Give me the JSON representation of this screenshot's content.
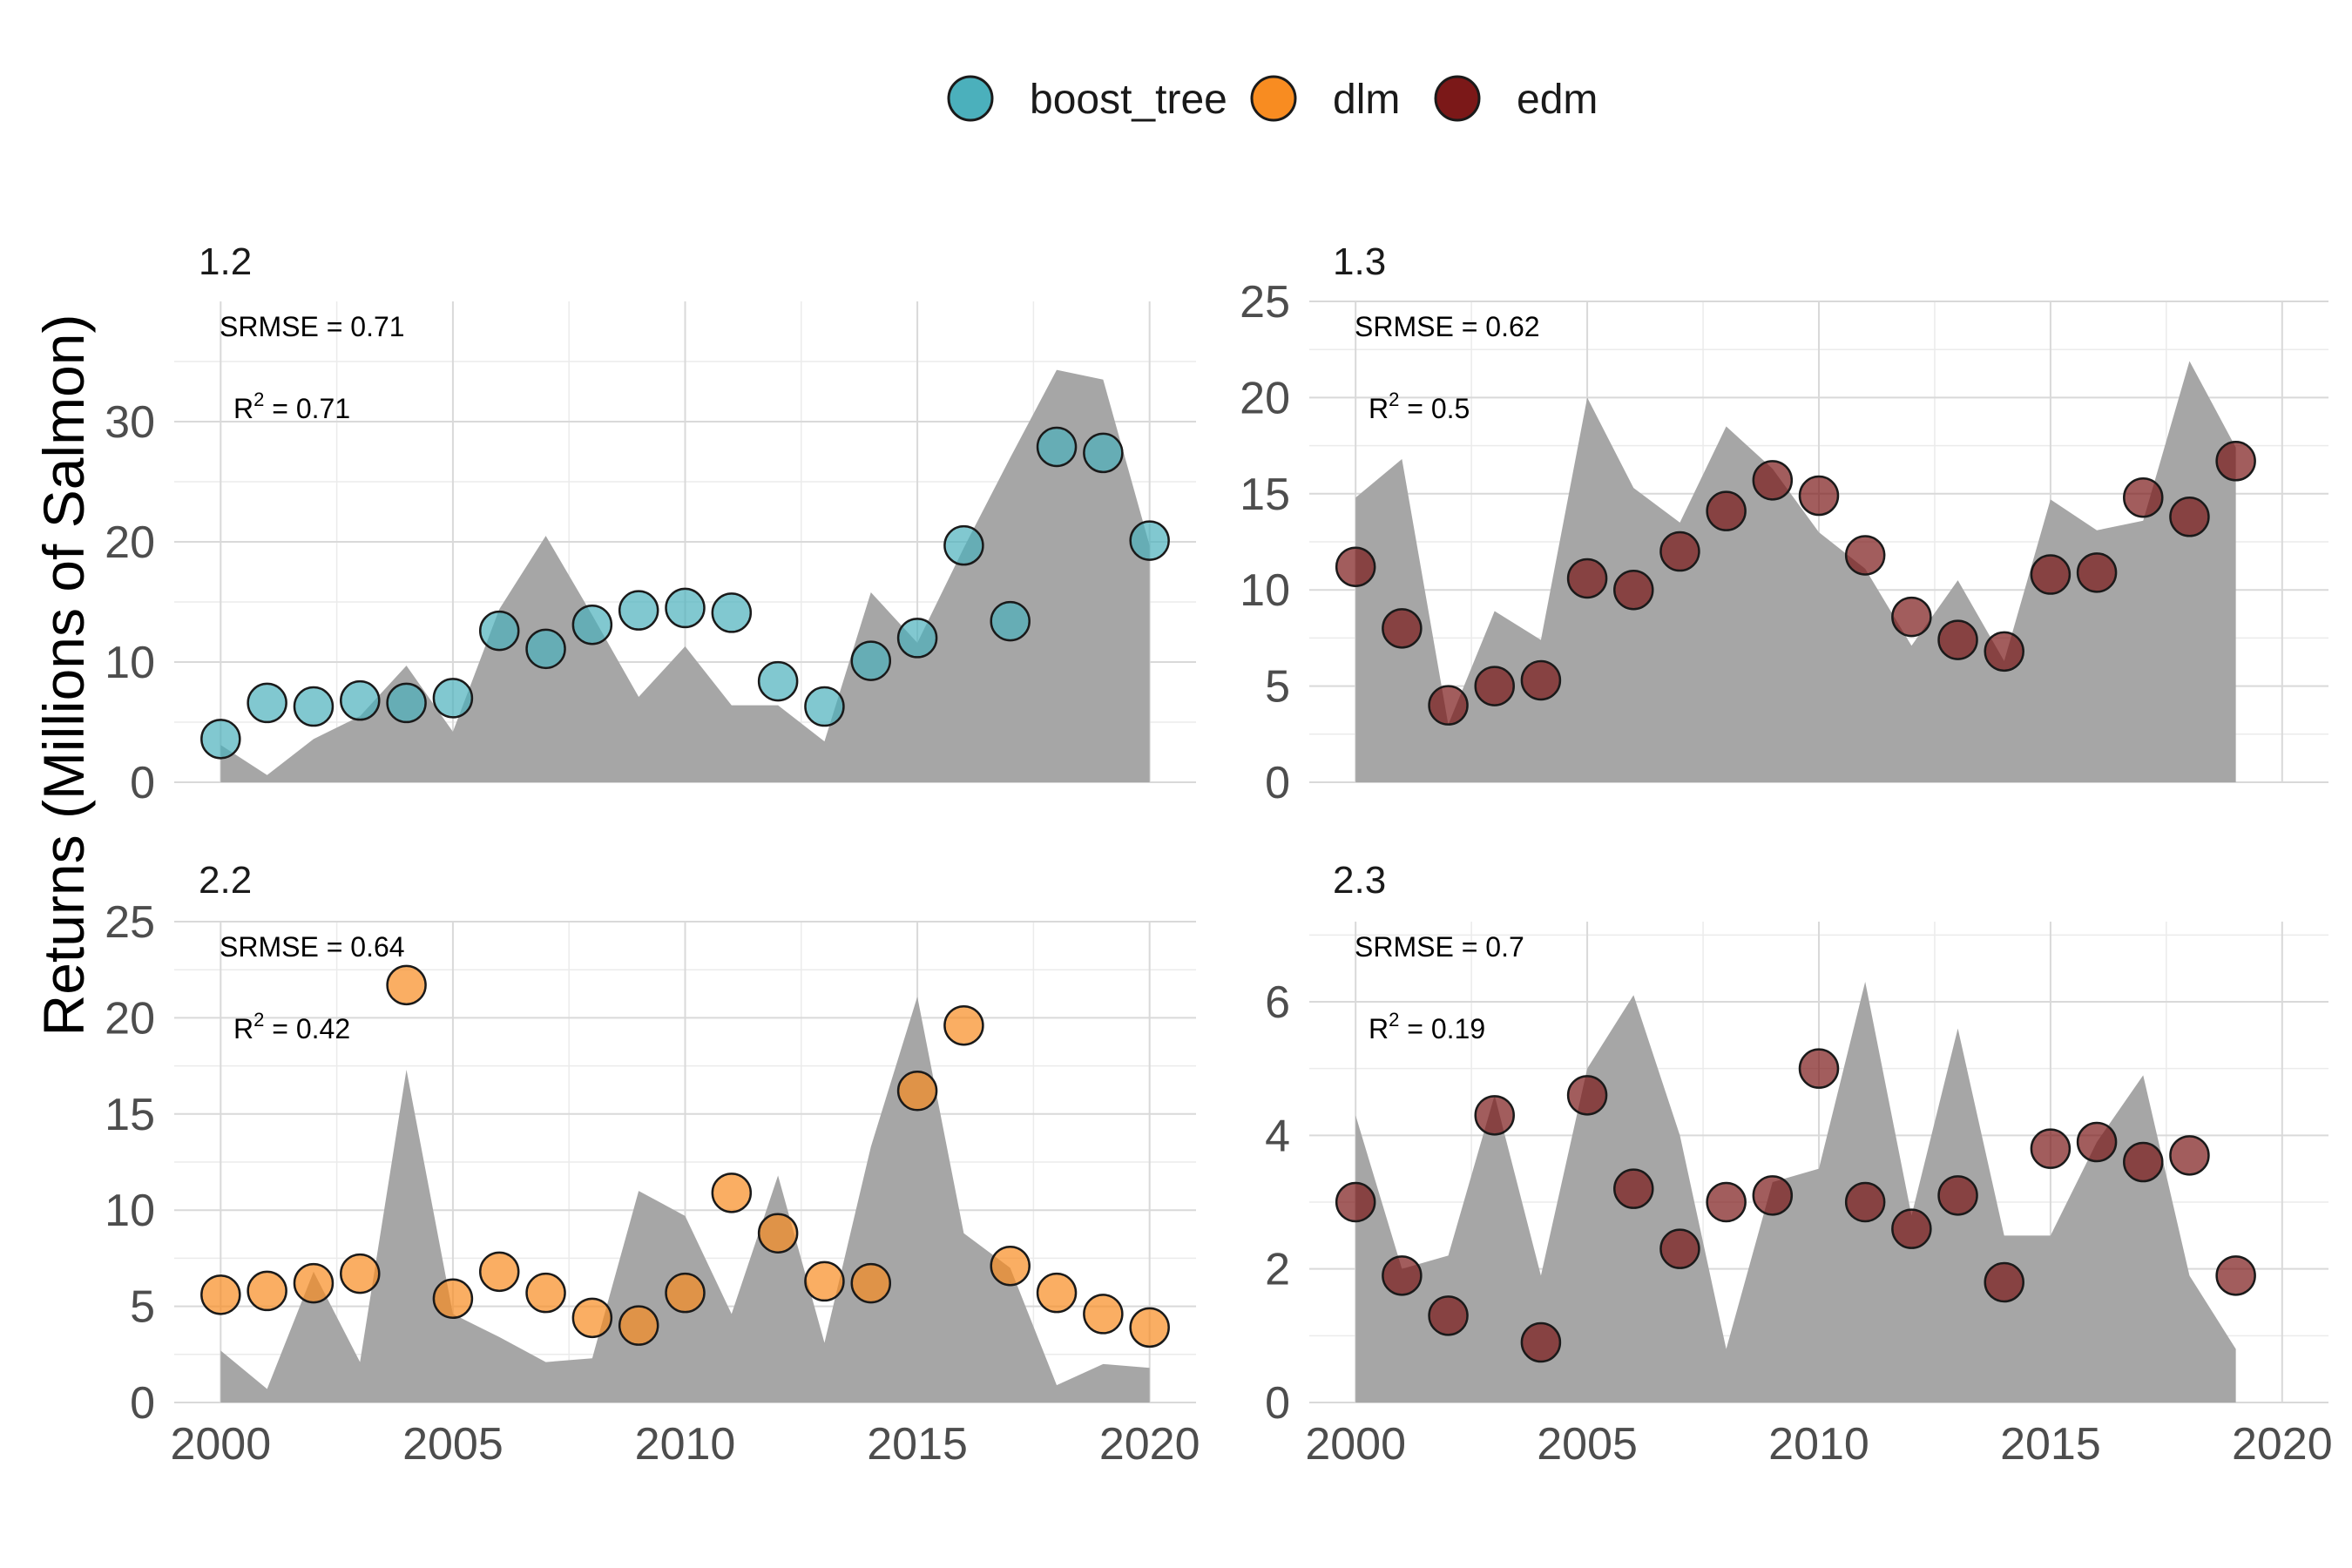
{
  "chart_data": {
    "type": "faceted-area-scatter",
    "ylabel": "Returns (Millions of Salmon)",
    "xlabel": "",
    "legend": {
      "position": "top",
      "entries": [
        {
          "name": "boost_tree",
          "color": "#4bb0bc"
        },
        {
          "name": "dlm",
          "color": "#f88c21"
        },
        {
          "name": "edm",
          "color": "#7b1818"
        }
      ]
    },
    "x_ticks": [
      2000,
      2005,
      2010,
      2015,
      2020
    ],
    "panels": [
      {
        "title": "1.2",
        "model": "boost_tree",
        "srmse_label": "SRMSE = 0.71",
        "r2_prefix": "R",
        "r2_sup": "2",
        "r2_value": " = 0.71",
        "xlim": [
          1999,
          2021
        ],
        "ylim": [
          0,
          40
        ],
        "y_ticks": [
          0,
          10,
          20,
          30
        ],
        "observed": {
          "years": [
            2000,
            2001,
            2002,
            2003,
            2004,
            2005,
            2006,
            2007,
            2008,
            2009,
            2010,
            2011,
            2012,
            2013,
            2014,
            2015,
            2016,
            2017,
            2018,
            2019,
            2020
          ],
          "values": [
            3.1,
            0.6,
            3.6,
            5.5,
            9.7,
            4.2,
            14.4,
            20.5,
            13.9,
            7.1,
            11.3,
            6.4,
            6.4,
            3.4,
            15.8,
            11.6,
            19.5,
            27.0,
            34.3,
            33.5,
            19.7
          ]
        },
        "predicted": {
          "years": [
            2000,
            2001,
            2002,
            2003,
            2004,
            2005,
            2006,
            2007,
            2008,
            2009,
            2010,
            2011,
            2012,
            2013,
            2014,
            2015,
            2016,
            2017,
            2018,
            2019,
            2020
          ],
          "values": [
            3.6,
            6.6,
            6.3,
            6.8,
            6.6,
            7.0,
            12.6,
            11.1,
            13.1,
            14.3,
            14.5,
            14.1,
            8.4,
            6.3,
            10.1,
            12.0,
            19.7,
            13.4,
            27.9,
            27.4,
            20.1
          ]
        }
      },
      {
        "title": "1.3",
        "model": "edm",
        "srmse_label": "SRMSE = 0.62",
        "r2_prefix": "R",
        "r2_sup": "2",
        "r2_value": " = 0.5",
        "xlim": [
          1999,
          2021
        ],
        "ylim": [
          0,
          25
        ],
        "y_ticks": [
          0,
          5,
          10,
          15,
          20,
          25
        ],
        "observed": {
          "years": [
            2000,
            2001,
            2002,
            2003,
            2004,
            2005,
            2006,
            2007,
            2008,
            2009,
            2010,
            2011,
            2012,
            2013,
            2014,
            2015,
            2016,
            2017,
            2018,
            2019
          ],
          "values": [
            14.8,
            16.8,
            3.0,
            8.9,
            7.4,
            20.0,
            15.3,
            13.5,
            18.5,
            16.3,
            13.0,
            11.1,
            7.1,
            10.5,
            6.3,
            14.7,
            13.1,
            13.6,
            21.9,
            17.4
          ]
        },
        "predicted": {
          "years": [
            2000,
            2001,
            2002,
            2003,
            2004,
            2005,
            2006,
            2007,
            2008,
            2009,
            2010,
            2011,
            2012,
            2013,
            2014,
            2015,
            2016,
            2017,
            2018,
            2019
          ],
          "values": [
            11.2,
            8.0,
            4.0,
            5.0,
            5.3,
            10.6,
            10.0,
            12.0,
            14.1,
            15.7,
            14.9,
            11.8,
            8.6,
            7.4,
            6.8,
            10.8,
            10.9,
            14.8,
            13.8,
            16.7
          ]
        }
      },
      {
        "title": "2.2",
        "model": "dlm",
        "srmse_label": "SRMSE = 0.64",
        "r2_prefix": "R",
        "r2_sup": "2",
        "r2_value": " = 0.42",
        "xlim": [
          1999,
          2021
        ],
        "ylim": [
          0,
          25
        ],
        "y_ticks": [
          0,
          5,
          10,
          15,
          20,
          25
        ],
        "observed": {
          "years": [
            2000,
            2001,
            2002,
            2003,
            2004,
            2005,
            2006,
            2007,
            2008,
            2009,
            2010,
            2011,
            2012,
            2013,
            2014,
            2015,
            2016,
            2017,
            2018,
            2019,
            2020
          ],
          "values": [
            2.7,
            0.7,
            6.8,
            2.1,
            17.3,
            4.6,
            3.4,
            2.1,
            2.3,
            11.0,
            9.7,
            4.6,
            11.8,
            3.1,
            13.3,
            21.1,
            8.8,
            7.0,
            0.9,
            2.0,
            1.8
          ]
        },
        "predicted": {
          "years": [
            2000,
            2001,
            2002,
            2003,
            2004,
            2005,
            2006,
            2007,
            2008,
            2009,
            2010,
            2011,
            2012,
            2013,
            2014,
            2015,
            2016,
            2017,
            2018,
            2019,
            2020
          ],
          "values": [
            5.6,
            5.8,
            6.2,
            6.7,
            21.7,
            5.4,
            6.8,
            5.7,
            4.4,
            4.0,
            5.7,
            10.9,
            8.8,
            6.3,
            6.2,
            16.2,
            19.6,
            7.1,
            5.7,
            4.6,
            3.9
          ]
        }
      },
      {
        "title": "2.3",
        "model": "edm",
        "srmse_label": "SRMSE = 0.7",
        "r2_prefix": "R",
        "r2_sup": "2",
        "r2_value": " = 0.19",
        "xlim": [
          1999,
          2021
        ],
        "ylim": [
          0,
          7.2
        ],
        "y_ticks": [
          0,
          2,
          4,
          6
        ],
        "observed": {
          "years": [
            2000,
            2001,
            2002,
            2003,
            2004,
            2005,
            2006,
            2007,
            2008,
            2009,
            2010,
            2011,
            2012,
            2013,
            2014,
            2015,
            2016,
            2017,
            2018,
            2019
          ],
          "values": [
            4.3,
            2.0,
            2.2,
            4.6,
            1.9,
            5.0,
            6.1,
            4.0,
            0.8,
            3.3,
            3.5,
            6.3,
            2.8,
            5.6,
            2.5,
            2.5,
            3.9,
            4.9,
            1.9,
            0.8
          ]
        },
        "predicted": {
          "years": [
            2000,
            2001,
            2002,
            2003,
            2004,
            2005,
            2006,
            2007,
            2008,
            2009,
            2010,
            2011,
            2012,
            2013,
            2014,
            2015,
            2016,
            2017,
            2018,
            2019
          ],
          "values": [
            3.0,
            1.9,
            1.3,
            4.3,
            0.9,
            4.6,
            3.2,
            2.3,
            3.0,
            3.1,
            5.0,
            3.0,
            2.6,
            3.1,
            1.8,
            3.8,
            3.9,
            3.6,
            3.7,
            1.9
          ]
        }
      }
    ]
  }
}
